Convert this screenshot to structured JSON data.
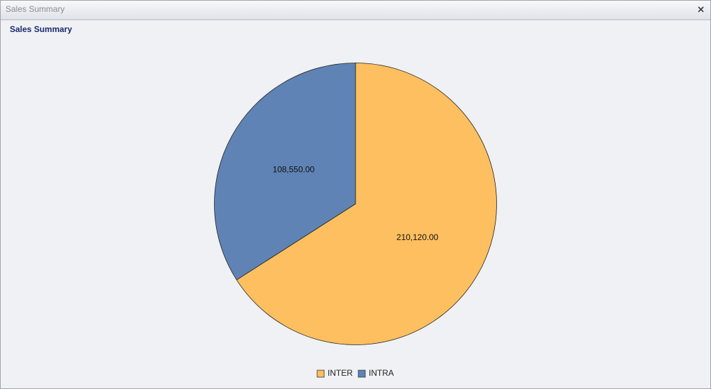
{
  "window": {
    "title": "Sales Summary"
  },
  "chart_data": {
    "type": "pie",
    "title": "Sales Summary",
    "categories": [
      "INTER",
      "INTRA"
    ],
    "values": [
      210120,
      108550
    ],
    "value_labels": [
      "210,120.00",
      "108,550.00"
    ],
    "colors": [
      "#fdbf5f",
      "#5f83b5"
    ],
    "legend": "bottom"
  }
}
